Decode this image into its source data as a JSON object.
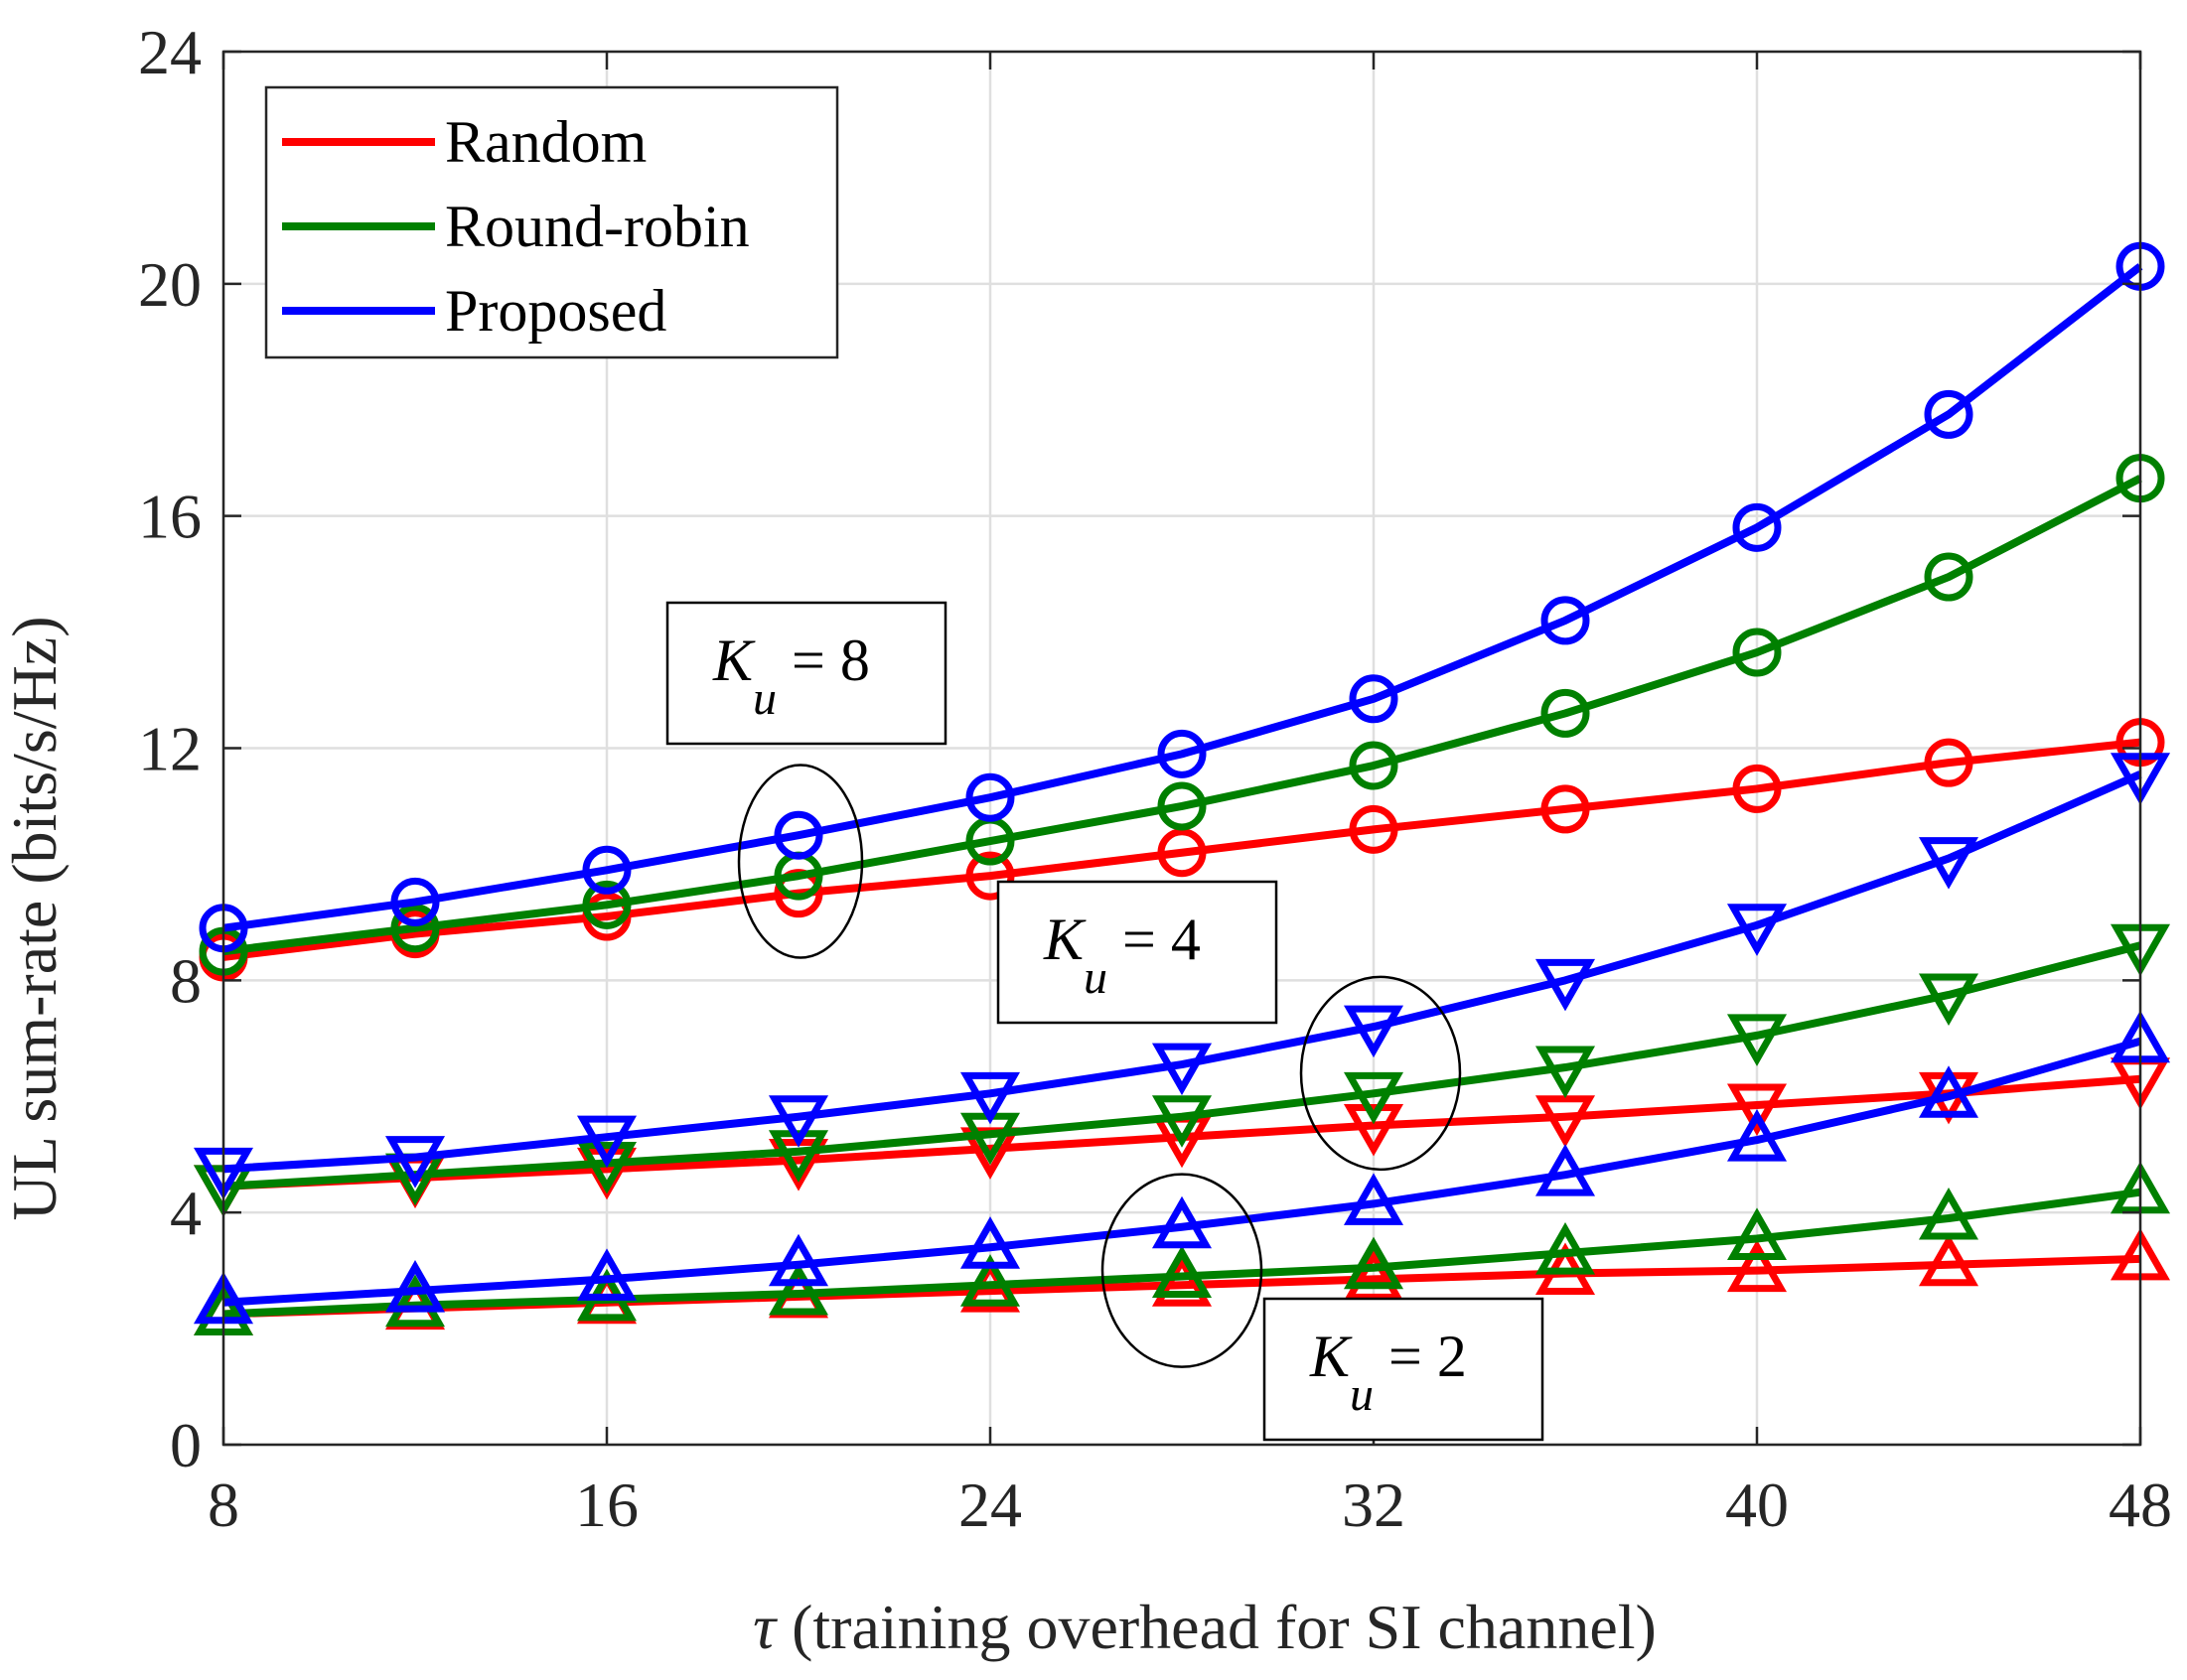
{
  "chart_data": {
    "type": "line",
    "title": "",
    "xlabel_symbol": "τ",
    "xlabel": " (training overhead for SI channel)",
    "ylabel": "UL sum-rate (bits/s/Hz)",
    "xlim": [
      8,
      48
    ],
    "ylim": [
      0,
      24
    ],
    "xticks": [
      8,
      16,
      24,
      32,
      40,
      48
    ],
    "yticks": [
      0,
      4,
      8,
      12,
      16,
      20,
      24
    ],
    "grid": true,
    "legend_position": "top-left",
    "x": [
      8,
      12,
      16,
      20,
      24,
      28,
      32,
      36,
      40,
      44,
      48
    ],
    "series": [
      {
        "name": "Random",
        "group": "Ku=8",
        "color": "#ff0000",
        "marker": "circle",
        "values": [
          8.4,
          8.8,
          9.1,
          9.5,
          9.8,
          10.2,
          10.6,
          10.95,
          11.3,
          11.75,
          12.1
        ]
      },
      {
        "name": "Round-robin",
        "group": "Ku=8",
        "color": "#008000",
        "marker": "circle",
        "values": [
          8.5,
          8.9,
          9.3,
          9.8,
          10.4,
          11.0,
          11.7,
          12.6,
          13.65,
          14.95,
          16.65
        ]
      },
      {
        "name": "Proposed",
        "group": "Ku=8",
        "color": "#0000ff",
        "marker": "circle",
        "values": [
          8.9,
          9.35,
          9.9,
          10.5,
          11.15,
          11.9,
          12.85,
          14.2,
          15.8,
          17.75,
          20.3
        ]
      },
      {
        "name": "Random",
        "group": "Ku=4",
        "color": "#ff0000",
        "marker": "triangle-down",
        "values": [
          4.45,
          4.6,
          4.75,
          4.9,
          5.1,
          5.3,
          5.5,
          5.65,
          5.85,
          6.05,
          6.3
        ]
      },
      {
        "name": "Round-robin",
        "group": "Ku=4",
        "color": "#008000",
        "marker": "triangle-down",
        "values": [
          4.45,
          4.65,
          4.85,
          5.05,
          5.35,
          5.65,
          6.05,
          6.5,
          7.05,
          7.75,
          8.6
        ]
      },
      {
        "name": "Proposed",
        "group": "Ku=4",
        "color": "#0000ff",
        "marker": "triangle-down",
        "values": [
          4.75,
          4.95,
          5.3,
          5.65,
          6.05,
          6.55,
          7.2,
          8.0,
          8.95,
          10.1,
          11.55
        ]
      },
      {
        "name": "Random",
        "group": "Ku=2",
        "color": "#ff0000",
        "marker": "triangle-up",
        "values": [
          2.25,
          2.35,
          2.45,
          2.55,
          2.65,
          2.75,
          2.85,
          2.95,
          3.0,
          3.1,
          3.2
        ]
      },
      {
        "name": "Round-robin",
        "group": "Ku=2",
        "color": "#008000",
        "marker": "triangle-up",
        "values": [
          2.25,
          2.4,
          2.5,
          2.6,
          2.75,
          2.9,
          3.05,
          3.3,
          3.55,
          3.9,
          4.35
        ]
      },
      {
        "name": "Proposed",
        "group": "Ku=2",
        "color": "#0000ff",
        "marker": "triangle-up",
        "values": [
          2.45,
          2.65,
          2.85,
          3.1,
          3.4,
          3.75,
          4.15,
          4.65,
          5.25,
          6.0,
          6.95
        ]
      }
    ],
    "legend": [
      {
        "label": "Random",
        "color": "#ff0000"
      },
      {
        "label": "Round-robin",
        "color": "#008000"
      },
      {
        "label": "Proposed",
        "color": "#0000ff"
      }
    ],
    "annotations": [
      {
        "var": "K",
        "sub": "u",
        "text": " = 8",
        "target_x": 20,
        "target_y": 10.05
      },
      {
        "var": "K",
        "sub": "u",
        "text": " = 4",
        "target_x": 32,
        "target_y": 6.4
      },
      {
        "var": "K",
        "sub": "u",
        "text": " = 2",
        "target_x": 28,
        "target_y": 3.0
      }
    ]
  }
}
